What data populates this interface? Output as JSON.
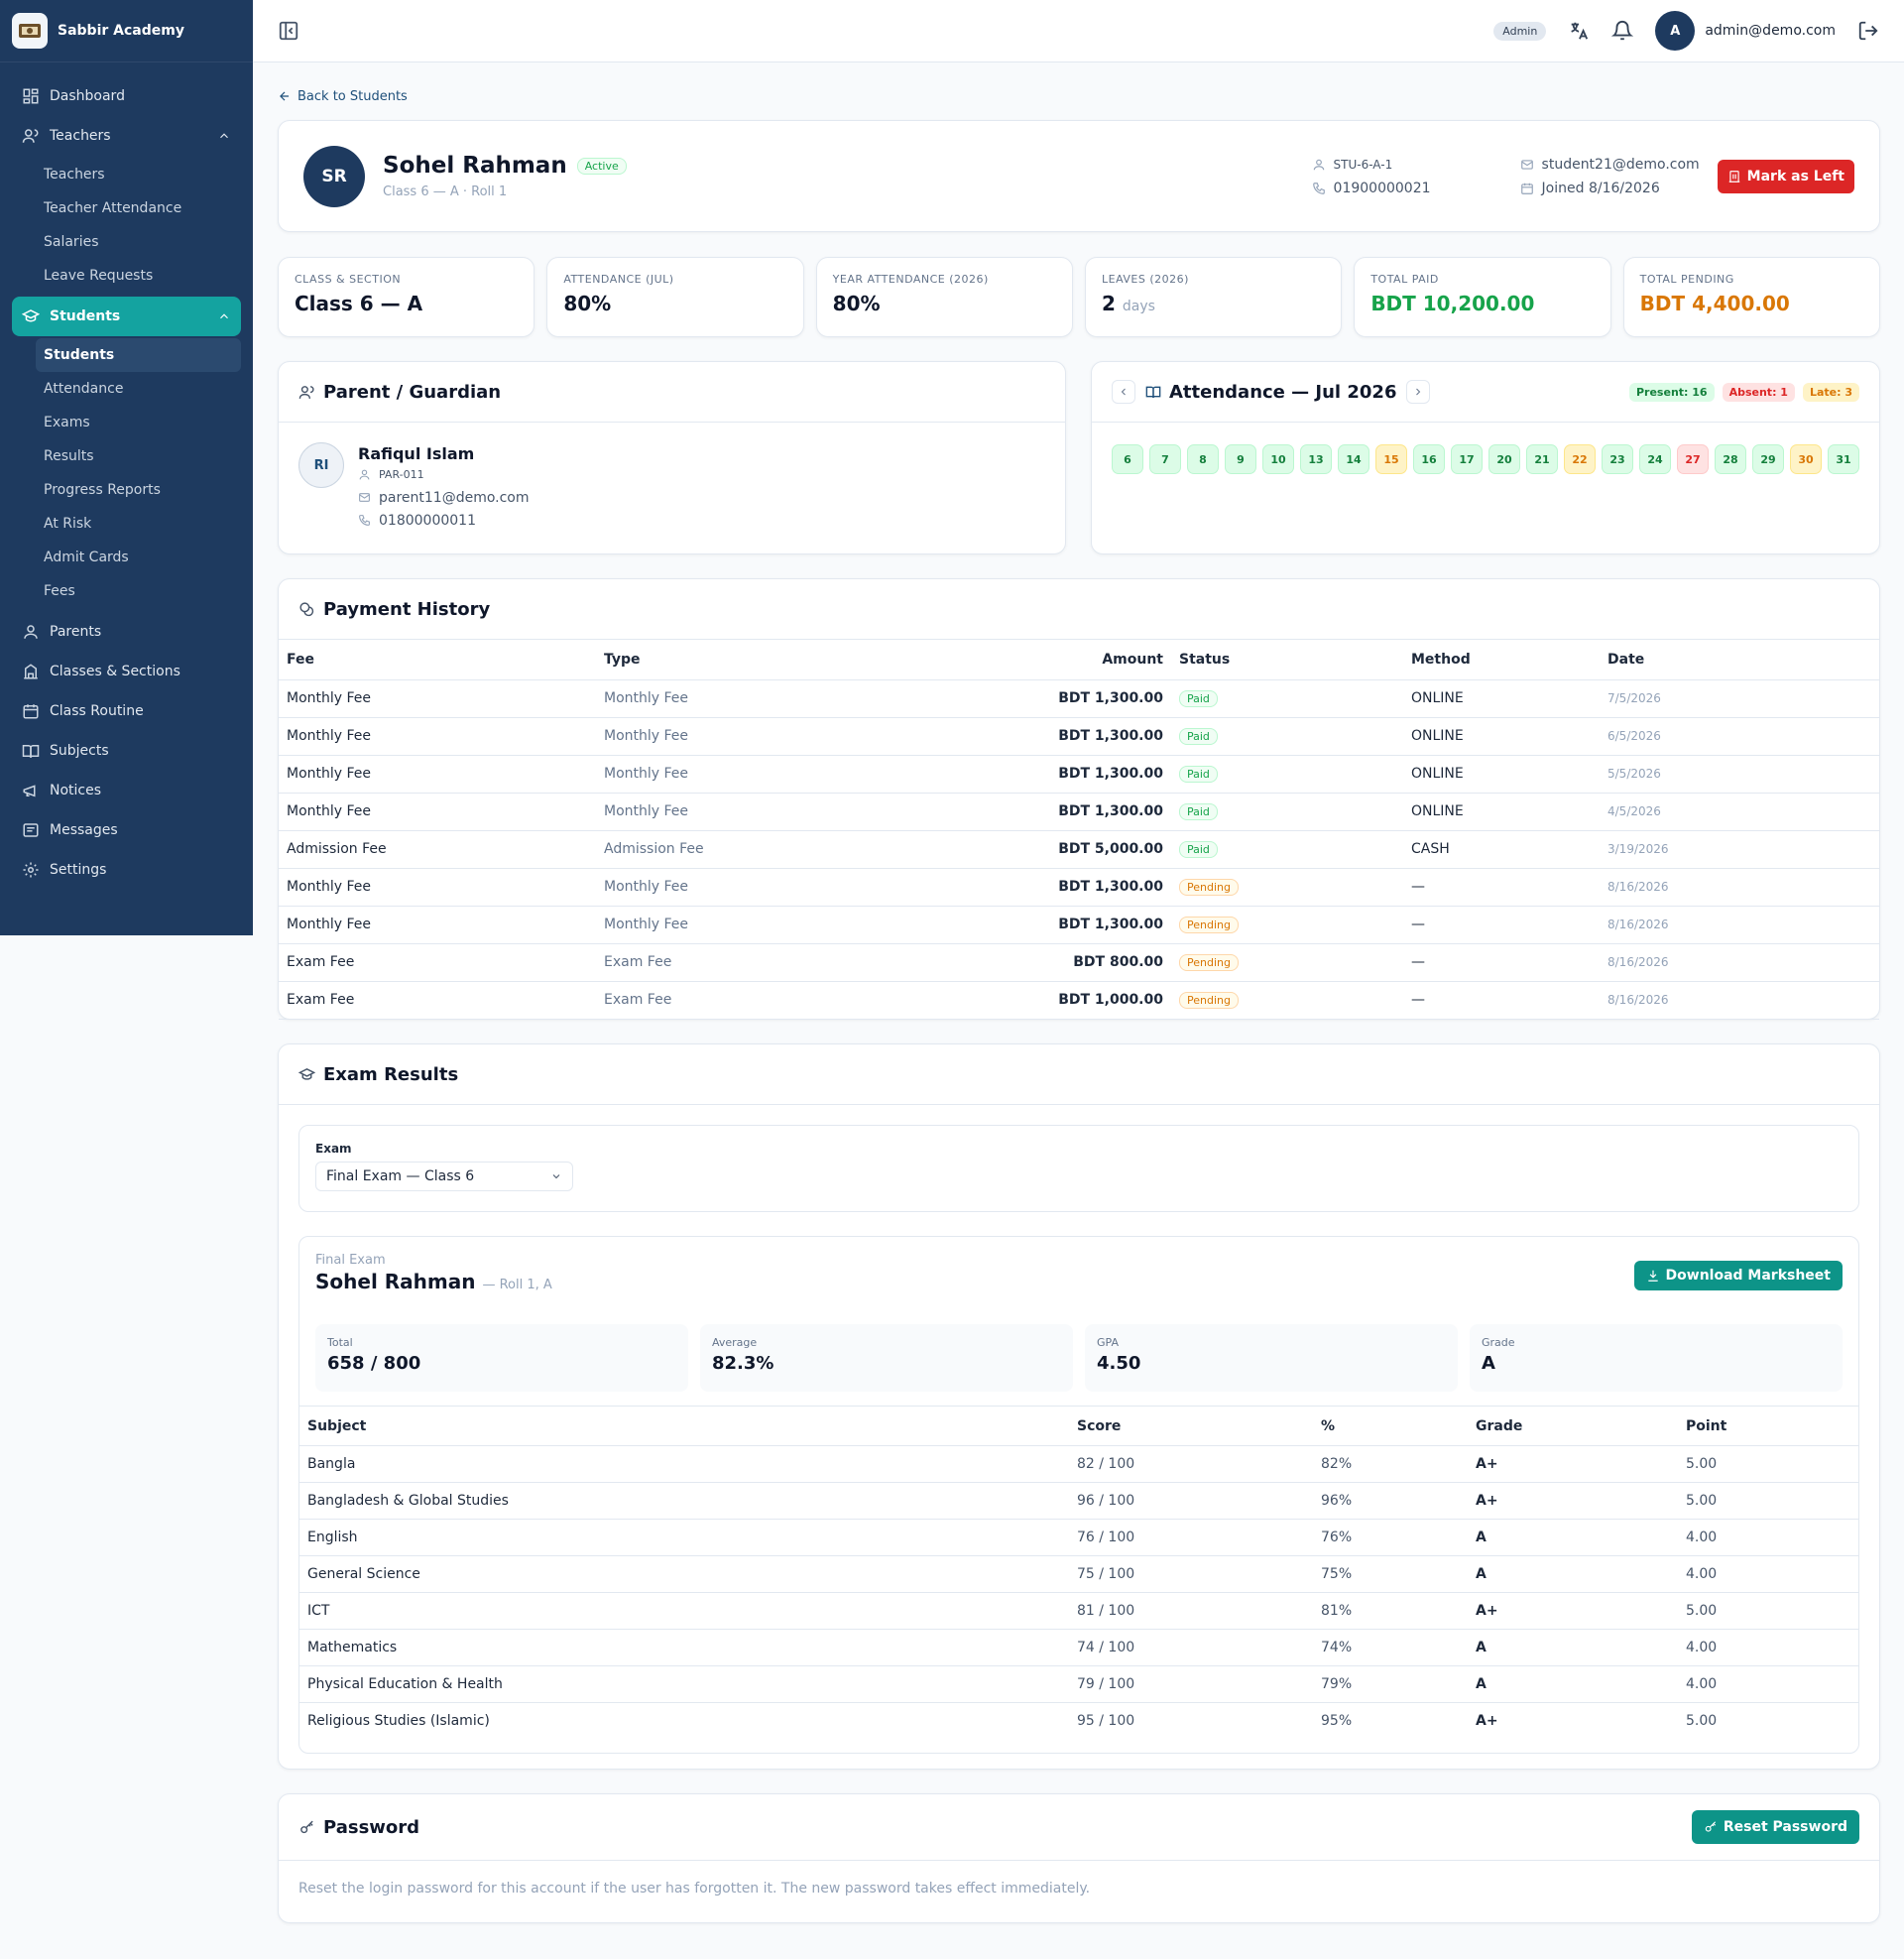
{
  "brand": {
    "name": "Sabbir Academy"
  },
  "sidebar": {
    "items": [
      {
        "label": "Dashboard",
        "icon": "dashboard-icon"
      },
      {
        "label": "Teachers",
        "icon": "users-icon",
        "children": [
          "Teachers",
          "Teacher Attendance",
          "Salaries",
          "Leave Requests"
        ]
      },
      {
        "label": "Students",
        "icon": "graduation-cap-icon",
        "children": [
          "Students",
          "Attendance",
          "Exams",
          "Results",
          "Progress Reports",
          "At Risk",
          "Admit Cards",
          "Fees"
        ]
      },
      {
        "label": "Parents",
        "icon": "user-icon"
      },
      {
        "label": "Classes & Sections",
        "icon": "building-icon"
      },
      {
        "label": "Class Routine",
        "icon": "calendar-icon"
      },
      {
        "label": "Subjects",
        "icon": "book-icon"
      },
      {
        "label": "Notices",
        "icon": "megaphone-icon"
      },
      {
        "label": "Messages",
        "icon": "message-icon"
      },
      {
        "label": "Settings",
        "icon": "gear-icon"
      }
    ]
  },
  "topbar": {
    "role": "Admin",
    "avatar": "A",
    "email": "admin@demo.com"
  },
  "back_link": "Back to Students",
  "student": {
    "initials": "SR",
    "name": "Sohel Rahman",
    "status": "Active",
    "subtitle": "Class 6 — A · Roll 1",
    "id": "STU-6-A-1",
    "phone": "01900000021",
    "email": "student21@demo.com",
    "joined": "Joined 8/16/2026",
    "mark_left_label": "Mark as Left"
  },
  "stats": [
    {
      "label": "CLASS & SECTION",
      "value": "Class 6 — A"
    },
    {
      "label": "ATTENDANCE (JUL)",
      "value": "80%"
    },
    {
      "label": "YEAR ATTENDANCE (2026)",
      "value": "80%"
    },
    {
      "label": "LEAVES (2026)",
      "value": "2",
      "unit": "days"
    },
    {
      "label": "TOTAL PAID",
      "value": "BDT 10,200.00"
    },
    {
      "label": "TOTAL PENDING",
      "value": "BDT 4,400.00"
    }
  ],
  "guardian": {
    "title": "Parent / Guardian",
    "initials": "RI",
    "name": "Rafiqul Islam",
    "id": "PAR-011",
    "email": "parent11@demo.com",
    "phone": "01800000011"
  },
  "attendance": {
    "title": "Attendance — Jul 2026",
    "present": "Present: 16",
    "absent": "Absent: 1",
    "late": "Late: 3",
    "days": [
      {
        "d": "6",
        "s": "present"
      },
      {
        "d": "7",
        "s": "present"
      },
      {
        "d": "8",
        "s": "present"
      },
      {
        "d": "9",
        "s": "present"
      },
      {
        "d": "10",
        "s": "present"
      },
      {
        "d": "13",
        "s": "present"
      },
      {
        "d": "14",
        "s": "present"
      },
      {
        "d": "15",
        "s": "late"
      },
      {
        "d": "16",
        "s": "present"
      },
      {
        "d": "17",
        "s": "present"
      },
      {
        "d": "20",
        "s": "present"
      },
      {
        "d": "21",
        "s": "present"
      },
      {
        "d": "22",
        "s": "late"
      },
      {
        "d": "23",
        "s": "present"
      },
      {
        "d": "24",
        "s": "present"
      },
      {
        "d": "27",
        "s": "absent"
      },
      {
        "d": "28",
        "s": "present"
      },
      {
        "d": "29",
        "s": "present"
      },
      {
        "d": "30",
        "s": "late"
      },
      {
        "d": "31",
        "s": "present"
      }
    ]
  },
  "payments": {
    "title": "Payment History",
    "headers": [
      "Fee",
      "Type",
      "Amount",
      "Status",
      "Method",
      "Date"
    ],
    "rows": [
      [
        "Monthly Fee",
        "Monthly Fee",
        "BDT 1,300.00",
        "Paid",
        "ONLINE",
        "7/5/2026"
      ],
      [
        "Monthly Fee",
        "Monthly Fee",
        "BDT 1,300.00",
        "Paid",
        "ONLINE",
        "6/5/2026"
      ],
      [
        "Monthly Fee",
        "Monthly Fee",
        "BDT 1,300.00",
        "Paid",
        "ONLINE",
        "5/5/2026"
      ],
      [
        "Monthly Fee",
        "Monthly Fee",
        "BDT 1,300.00",
        "Paid",
        "ONLINE",
        "4/5/2026"
      ],
      [
        "Admission Fee",
        "Admission Fee",
        "BDT 5,000.00",
        "Paid",
        "CASH",
        "3/19/2026"
      ],
      [
        "Monthly Fee",
        "Monthly Fee",
        "BDT 1,300.00",
        "Pending",
        "—",
        "8/16/2026"
      ],
      [
        "Monthly Fee",
        "Monthly Fee",
        "BDT 1,300.00",
        "Pending",
        "—",
        "8/16/2026"
      ],
      [
        "Exam Fee",
        "Exam Fee",
        "BDT 800.00",
        "Pending",
        "—",
        "8/16/2026"
      ],
      [
        "Exam Fee",
        "Exam Fee",
        "BDT 1,000.00",
        "Pending",
        "—",
        "8/16/2026"
      ]
    ]
  },
  "exams": {
    "title": "Exam Results",
    "select_label": "Exam",
    "selected": "Final Exam — Class 6",
    "exam_name": "Final Exam",
    "student_name": "Sohel Rahman",
    "roll": "— Roll 1, A",
    "download_label": "Download Marksheet",
    "summary": [
      {
        "label": "Total",
        "value": "658 / 800"
      },
      {
        "label": "Average",
        "value": "82.3%"
      },
      {
        "label": "GPA",
        "value": "4.50"
      },
      {
        "label": "Grade",
        "value": "A"
      }
    ],
    "headers": [
      "Subject",
      "Score",
      "%",
      "Grade",
      "Point"
    ],
    "rows": [
      [
        "Bangla",
        "82 / 100",
        "82%",
        "A+",
        "5.00"
      ],
      [
        "Bangladesh & Global Studies",
        "96 / 100",
        "96%",
        "A+",
        "5.00"
      ],
      [
        "English",
        "76 / 100",
        "76%",
        "A",
        "4.00"
      ],
      [
        "General Science",
        "75 / 100",
        "75%",
        "A",
        "4.00"
      ],
      [
        "ICT",
        "81 / 100",
        "81%",
        "A+",
        "5.00"
      ],
      [
        "Mathematics",
        "74 / 100",
        "74%",
        "A",
        "4.00"
      ],
      [
        "Physical Education & Health",
        "79 / 100",
        "79%",
        "A",
        "4.00"
      ],
      [
        "Religious Studies (Islamic)",
        "95 / 100",
        "95%",
        "A+",
        "5.00"
      ]
    ]
  },
  "password": {
    "title": "Password",
    "button": "Reset Password",
    "description": "Reset the login password for this account if the user has forgotten it. The new password takes effect immediately."
  }
}
